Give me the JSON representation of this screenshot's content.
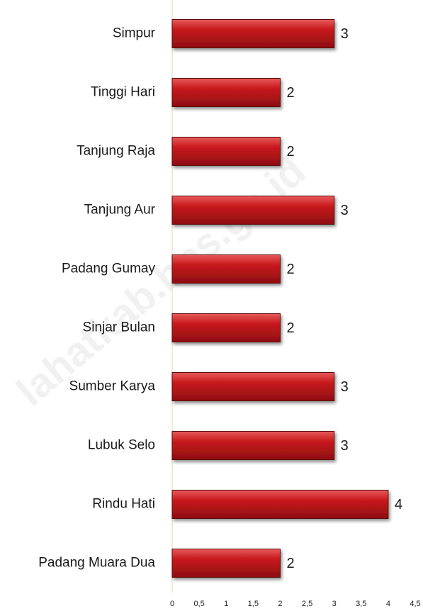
{
  "chart_data": {
    "type": "bar",
    "orientation": "horizontal",
    "categories": [
      "Simpur",
      "Tinggi Hari",
      "Tanjung Raja",
      "Tanjung Aur",
      "Padang Gumay",
      "Sinjar Bulan",
      "Sumber Karya",
      "Lubuk Selo",
      "Rindu Hati",
      "Padang Muara Dua"
    ],
    "values": [
      3,
      2,
      2,
      3,
      2,
      2,
      3,
      3,
      4,
      2
    ],
    "color": "#c0181c",
    "xlim": [
      0,
      4.5
    ],
    "xticks": [
      0,
      {
        "value": 0.5,
        "label": "0,5"
      },
      1,
      {
        "value": 1.5,
        "label": "1,5"
      },
      2,
      {
        "value": 2.5,
        "label": "2,5"
      },
      3,
      {
        "value": 3.5,
        "label": "3,5"
      },
      4,
      {
        "value": 4.5,
        "label": "4,5"
      }
    ],
    "watermark": "lahatkab.bps.go.id"
  }
}
